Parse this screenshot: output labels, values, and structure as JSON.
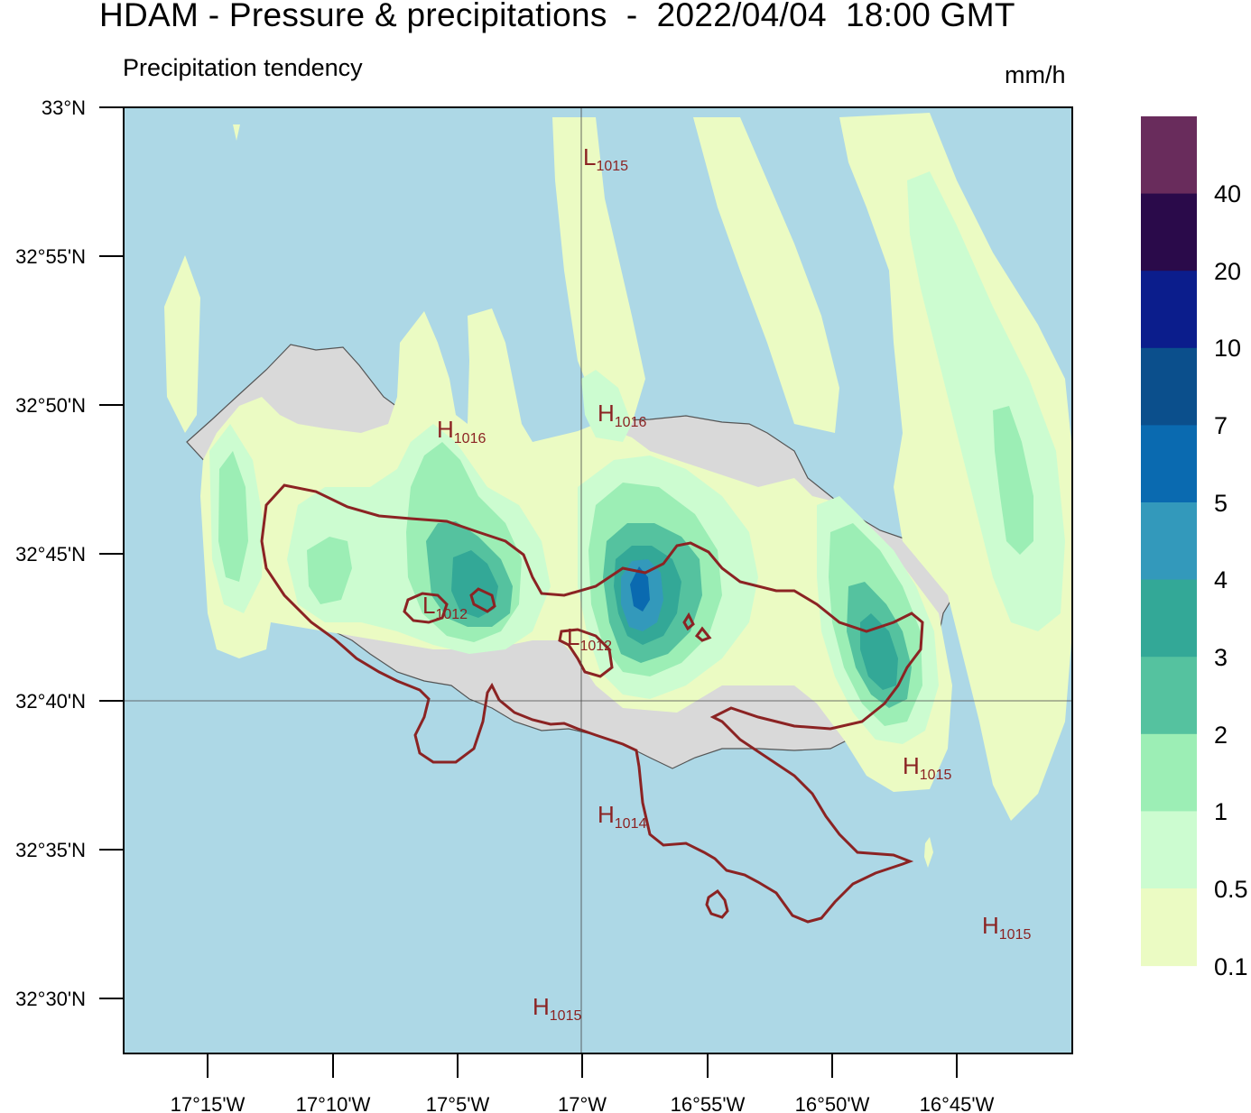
{
  "header": {
    "title": "HDAM - Pressure & precipitations  -  2022/04/04  18:00 GMT",
    "subtitle": "Precipitation tendency",
    "units": "mm/h"
  },
  "map": {
    "lat_labels": [
      "33°N",
      "32°55'N",
      "32°50'N",
      "32°45'N",
      "32°40'N",
      "32°35'N",
      "32°30'N"
    ],
    "lon_labels": [
      "17°15'W",
      "17°10'W",
      "17°5'W",
      "17°W",
      "16°55'W",
      "16°50'W",
      "16°45'W"
    ],
    "colors": {
      "sea": "#add8e6",
      "land": "#d9d9d9",
      "isobar": "#8b2323"
    },
    "pressure_centers": [
      {
        "type": "L",
        "value": "1015"
      },
      {
        "type": "H",
        "value": "1016"
      },
      {
        "type": "H",
        "value": "1016"
      },
      {
        "type": "L",
        "value": "1012"
      },
      {
        "type": "L",
        "value": "1012"
      },
      {
        "type": "H",
        "value": "1015"
      },
      {
        "type": "H",
        "value": "1014"
      },
      {
        "type": "H",
        "value": "1015"
      },
      {
        "type": "H",
        "value": "1015"
      }
    ]
  },
  "legend": {
    "labels": [
      "40",
      "20",
      "10",
      "7",
      "5",
      "4",
      "3",
      "2",
      "1",
      "0.5",
      "0.1"
    ],
    "colors": [
      "#692c5c",
      "#2a0a4a",
      "#0b1d8c",
      "#0b4f8c",
      "#0a6ab0",
      "#3399bb",
      "#33a897",
      "#55c29f",
      "#9ceeb5",
      "#ccfcd0",
      "#ebfbc3"
    ]
  }
}
